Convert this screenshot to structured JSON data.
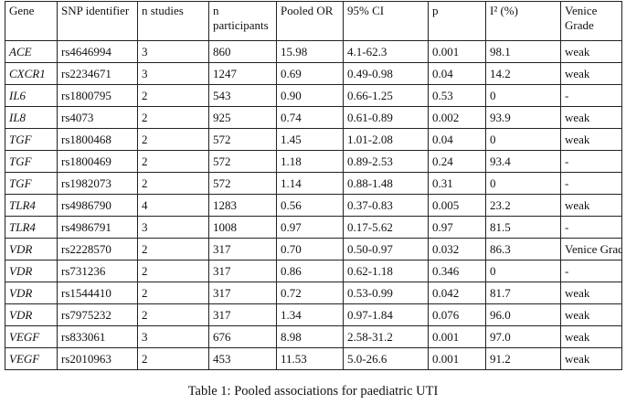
{
  "table": {
    "header": [
      "Gene",
      "SNP identifier",
      "n studies",
      "n participants",
      "Pooled OR",
      "95% CI",
      "p",
      "I² (%)",
      "Venice Grade"
    ],
    "rows": [
      [
        "ACE",
        "rs4646994",
        "3",
        "860",
        "15.98",
        "4.1-62.3",
        "0.001",
        "98.1",
        "weak"
      ],
      [
        "CXCR1",
        "rs2234671",
        "3",
        "1247",
        "0.69",
        "0.49-0.98",
        "0.04",
        "14.2",
        "weak"
      ],
      [
        "IL6",
        "rs1800795",
        "2",
        "543",
        "0.90",
        "0.66-1.25",
        "0.53",
        "0",
        "-"
      ],
      [
        "IL8",
        "rs4073",
        "2",
        "925",
        "0.74",
        "0.61-0.89",
        "0.002",
        "93.9",
        "weak"
      ],
      [
        "TGF",
        "rs1800468",
        "2",
        "572",
        "1.45",
        "1.01-2.08",
        "0.04",
        "0",
        "weak"
      ],
      [
        "TGF",
        "rs1800469",
        "2",
        "572",
        "1.18",
        "0.89-2.53",
        "0.24",
        "93.4",
        "-"
      ],
      [
        "TGF",
        "rs1982073",
        "2",
        "572",
        "1.14",
        "0.88-1.48",
        "0.31",
        "0",
        "-"
      ],
      [
        "TLR4",
        "rs4986790",
        "4",
        "1283",
        "0.56",
        "0.37-0.83",
        "0.005",
        "23.2",
        "weak"
      ],
      [
        "TLR4",
        "rs4986791",
        "3",
        "1008",
        "0.97",
        "0.17-5.62",
        "0.97",
        "81.5",
        "-"
      ],
      [
        "VDR",
        "rs2228570",
        "2",
        "317",
        "0.70",
        "0.50-0.97",
        "0.032",
        "86.3",
        "Venice Grade"
      ],
      [
        "VDR",
        "rs731236",
        "2",
        "317",
        "0.86",
        "0.62-1.18",
        "0.346",
        "0",
        "-"
      ],
      [
        "VDR",
        "rs1544410",
        "2",
        "317",
        "0.72",
        "0.53-0.99",
        "0.042",
        "81.7",
        "weak"
      ],
      [
        "VDR",
        "rs7975232",
        "2",
        "317",
        "1.34",
        "0.97-1.84",
        "0.076",
        "96.0",
        "weak"
      ],
      [
        "VEGF",
        "rs833061",
        "3",
        "676",
        "8.98",
        "2.58-31.2",
        "0.001",
        "97.0",
        "weak"
      ],
      [
        "VEGF",
        "rs2010963",
        "2",
        "453",
        "11.53",
        "5.0-26.6",
        "0.001",
        "91.2",
        "weak"
      ]
    ],
    "caption": "Table 1: Pooled associations for paediatric UTI"
  }
}
